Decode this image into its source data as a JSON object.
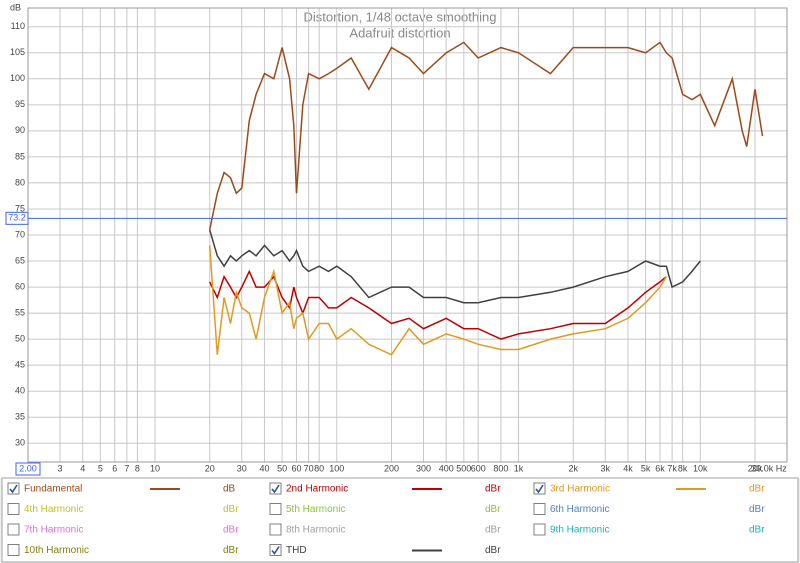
{
  "chart_data": {
    "type": "line",
    "title": "Distortion, 1/48 octave smoothing",
    "subtitle": "Adafruit distortion",
    "y_label": "dB",
    "log_x": true,
    "grid": true,
    "cursor_y": 73.2,
    "cursor_x": {
      "value": 2,
      "label": "2.00"
    },
    "xlim": [
      2,
      30000
    ],
    "ylim": [
      26.4,
      113.6
    ],
    "yticks": [
      30,
      35,
      40,
      45,
      50,
      55,
      60,
      65,
      70,
      75,
      80,
      85,
      90,
      95,
      100,
      105,
      110
    ],
    "xticks": [
      {
        "value": 2,
        "label": "2.00"
      },
      3,
      4,
      5,
      6,
      7,
      8,
      10,
      20,
      30,
      40,
      50,
      60,
      70,
      80,
      100,
      200,
      300,
      400,
      500,
      600,
      800,
      {
        "value": 1000,
        "label": "1k"
      },
      {
        "value": 2000,
        "label": "2k"
      },
      {
        "value": 3000,
        "label": "3k"
      },
      {
        "value": 4000,
        "label": "4k"
      },
      {
        "value": 5000,
        "label": "5k"
      },
      {
        "value": 6000,
        "label": "6k"
      },
      {
        "value": 7000,
        "label": "7k"
      },
      {
        "value": 8000,
        "label": "8k"
      },
      {
        "value": 10000,
        "label": "10k"
      },
      {
        "value": 20000,
        "label": "20k"
      },
      {
        "value": 30000,
        "label": "30.0k Hz"
      }
    ],
    "x": [
      20,
      22,
      24,
      26,
      28,
      30,
      33,
      36,
      40,
      45,
      50,
      55,
      58,
      60,
      65,
      70,
      80,
      90,
      100,
      120,
      150,
      200,
      250,
      300,
      400,
      500,
      600,
      800,
      1000,
      1500,
      2000,
      3000,
      4000,
      5000,
      6000,
      6500,
      7000,
      8000,
      9000,
      10000,
      12000,
      15000,
      17000,
      18000,
      20000,
      22000
    ],
    "series": [
      {
        "name": "Fundamental",
        "unit": "dB",
        "checked": true,
        "color": "#9c4a1a",
        "values": [
          71,
          78,
          82,
          81,
          78,
          79,
          92,
          97,
          101,
          100,
          106,
          100,
          91,
          78,
          95,
          101,
          100,
          101,
          102,
          104,
          98,
          106,
          104,
          101,
          105,
          107,
          104,
          106,
          105,
          101,
          106,
          106,
          106,
          105,
          107,
          105,
          104,
          97,
          96,
          97,
          91,
          100,
          90,
          87,
          98,
          89
        ]
      },
      {
        "name": "2nd Harmonic",
        "unit": "dBr",
        "checked": true,
        "color": "#c00000",
        "values": [
          61,
          58,
          62,
          60,
          58,
          60,
          63,
          60,
          60,
          62,
          58,
          56,
          60,
          58,
          55,
          58,
          58,
          56,
          56,
          58,
          56,
          53,
          54,
          52,
          54,
          52,
          52,
          50,
          51,
          52,
          53,
          53,
          56,
          59,
          61,
          62,
          null,
          null,
          null,
          null,
          null,
          null,
          null,
          null,
          null,
          null
        ]
      },
      {
        "name": "3rd Harmonic",
        "unit": "dBr",
        "checked": true,
        "color": "#e09a20",
        "values": [
          68,
          47,
          58,
          53,
          59,
          56,
          55,
          50,
          58,
          63,
          55,
          57,
          52,
          54,
          55,
          50,
          53,
          53,
          50,
          52,
          49,
          47,
          52,
          49,
          51,
          50,
          49,
          48,
          48,
          50,
          51,
          52,
          54,
          57,
          60,
          62,
          null,
          null,
          null,
          null,
          null,
          null,
          null,
          null,
          null,
          null
        ]
      },
      {
        "name": "4th Harmonic",
        "unit": "dBr",
        "checked": false,
        "color": "#c0c030"
      },
      {
        "name": "5th Harmonic",
        "unit": "dBr",
        "checked": false,
        "color": "#90c040"
      },
      {
        "name": "6th Harmonic",
        "unit": "dBr",
        "checked": false,
        "color": "#4a84d0"
      },
      {
        "name": "7th Harmonic",
        "unit": "dBr",
        "checked": false,
        "color": "#e070e0"
      },
      {
        "name": "8th Harmonic",
        "unit": "dBr",
        "checked": false,
        "color": "#a0a0a0"
      },
      {
        "name": "9th Harmonic",
        "unit": "dBr",
        "checked": false,
        "color": "#20b0c0"
      },
      {
        "name": "10th Harmonic",
        "unit": "dBr",
        "checked": false,
        "color": "#808010"
      },
      {
        "name": "THD",
        "unit": "dBr",
        "checked": true,
        "color": "#404040",
        "values": [
          71,
          66,
          64,
          66,
          65,
          66,
          67,
          66,
          68,
          66,
          67,
          65,
          66,
          67,
          64,
          63,
          64,
          63,
          64,
          62,
          58,
          60,
          60,
          58,
          58,
          57,
          57,
          58,
          58,
          59,
          60,
          62,
          63,
          65,
          64,
          64,
          60,
          61,
          63,
          65,
          null,
          null,
          null,
          null,
          null,
          null
        ]
      }
    ]
  }
}
